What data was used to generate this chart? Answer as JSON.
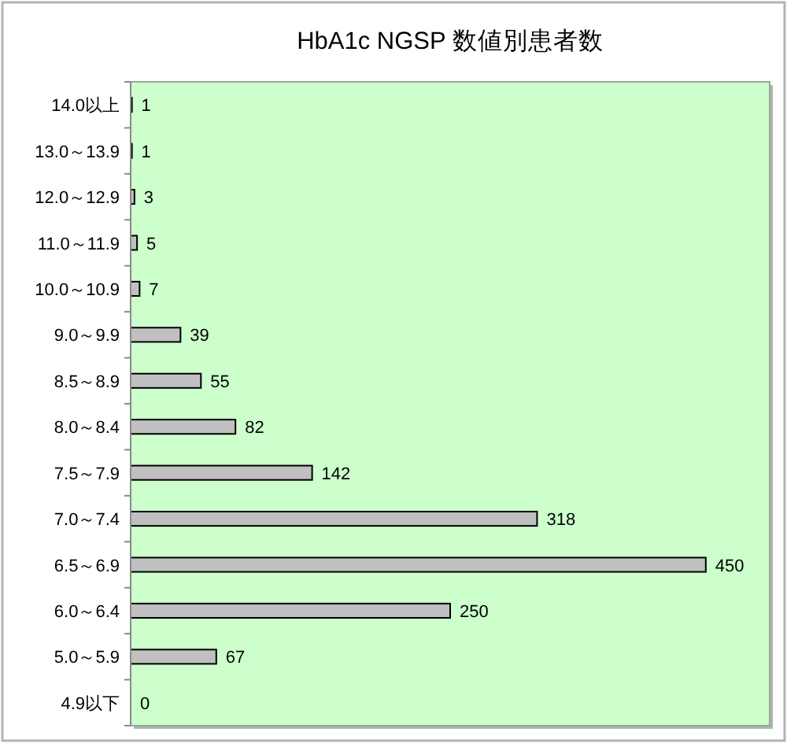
{
  "chart_data": {
    "type": "bar",
    "orientation": "horizontal",
    "title": "HbA1c NGSP 数値別患者数",
    "categories": [
      "14.0以上",
      "13.0～13.9",
      "12.0～12.9",
      "11.0～11.9",
      "10.0～10.9",
      "9.0～9.9",
      "8.5～8.9",
      "8.0～8.4",
      "7.5～7.9",
      "7.0～7.4",
      "6.5～6.9",
      "6.0～6.4",
      "5.0～5.9",
      "4.9以下"
    ],
    "values": [
      1,
      1,
      3,
      5,
      7,
      39,
      55,
      82,
      142,
      318,
      450,
      250,
      67,
      0
    ],
    "color": "#c0c0c0",
    "xlim": [
      0,
      500
    ],
    "data_labels": true,
    "tick_labels": "y"
  }
}
